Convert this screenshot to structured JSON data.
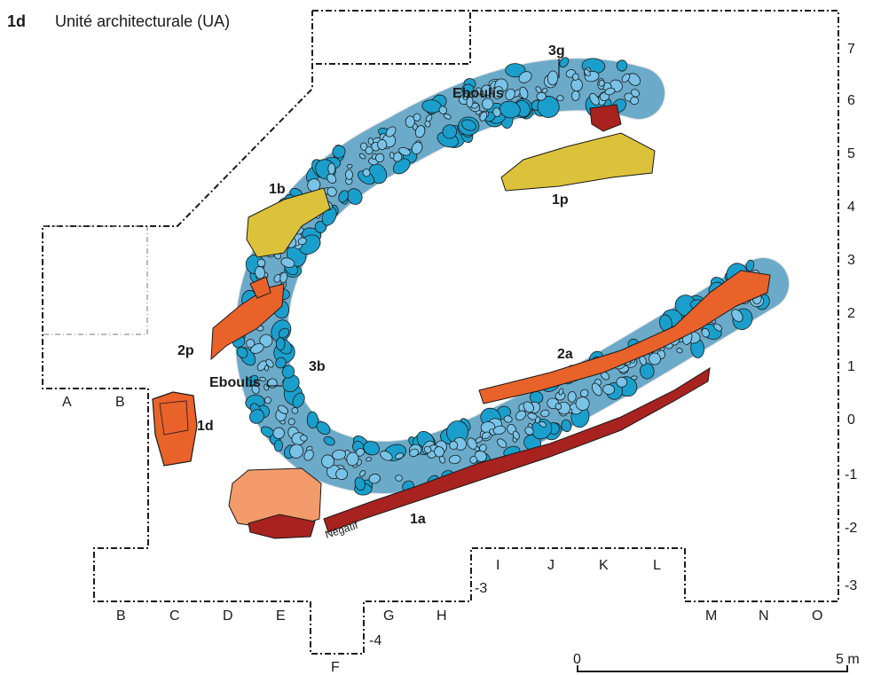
{
  "figure": {
    "panel_id": "1d",
    "title": "Unité architecturale (UA)"
  },
  "zones": {
    "z3g": "3g",
    "eboulis_top": "Eboulis",
    "z1b": "1b",
    "z1p": "1p",
    "z2p": "2p",
    "z3b": "3b",
    "eboulis_left": "Eboulis",
    "z2a": "2a",
    "z1d": "1d",
    "z1a": "1a",
    "negatif": "Négatif"
  },
  "columns": {
    "A": "A",
    "B_top": "B",
    "B_bottom": "B",
    "C": "C",
    "D": "D",
    "E": "E",
    "F": "F",
    "G": "G",
    "H": "H",
    "I": "I",
    "J": "J",
    "K": "K",
    "L": "L",
    "M": "M",
    "N": "N",
    "O": "O"
  },
  "rows": {
    "r7": "7",
    "r6": "6",
    "r5": "5",
    "r4": "4",
    "r3": "3",
    "r2": "2",
    "r1": "1",
    "r0": "0",
    "rm1": "-1",
    "rm2": "-2",
    "rm3_right": "-3",
    "rm3_mid": "-3",
    "rm4": "-4"
  },
  "scale": {
    "start": "0",
    "end": "5 m"
  },
  "colors": {
    "blue_dark": "#1a9fcc",
    "blue_light": "#79c3e8",
    "yellow": "#dcc23a",
    "orange": "#e8622a",
    "orange_light": "#f39b6a",
    "red_dark": "#a8221f",
    "outline": "#1a1a1a"
  }
}
